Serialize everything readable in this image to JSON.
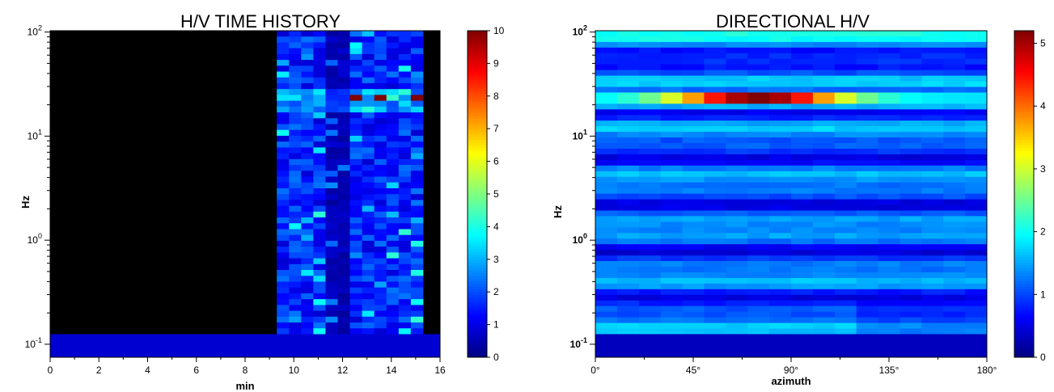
{
  "chart_data": [
    {
      "type": "heatmap",
      "title": "H/V TIME HISTORY",
      "xlabel": "min",
      "ylabel": "Hz",
      "xlim": [
        0,
        16
      ],
      "ylim": [
        0.1,
        100
      ],
      "yscale": "log",
      "x_ticks": [
        "0",
        "2",
        "4",
        "6",
        "8",
        "10",
        "12",
        "14",
        "16"
      ],
      "y_ticks": [
        {
          "base": "10",
          "exp": "-1"
        },
        {
          "base": "10",
          "exp": "0"
        },
        {
          "base": "10",
          "exp": "1"
        },
        {
          "base": "10",
          "exp": "2"
        }
      ],
      "colorbar": {
        "min": 0,
        "max": 10,
        "ticks": [
          "0",
          "1",
          "2",
          "3",
          "4",
          "5",
          "6",
          "7",
          "8",
          "9",
          "10"
        ]
      },
      "colormap": "jet",
      "no_data_color": "#000000",
      "data_start_min": 9.3,
      "data_end_min": 15,
      "peak_frequency_hz": 22,
      "peak_windows_min": [
        12.5,
        13.5,
        15.0
      ],
      "peak_value": 10
    },
    {
      "type": "heatmap",
      "title": "DIRECTIONAL H/V",
      "xlabel": "azimuth",
      "ylabel": "Hz",
      "xlim": [
        0,
        180
      ],
      "ylim": [
        0.1,
        100
      ],
      "yscale": "log",
      "x_ticks": [
        "0°",
        "45°",
        "90°",
        "135°",
        "180°"
      ],
      "y_ticks": [
        {
          "base": "10",
          "exp": "-1"
        },
        {
          "base": "10",
          "exp": "0"
        },
        {
          "base": "10",
          "exp": "1"
        },
        {
          "base": "10",
          "exp": "2"
        }
      ],
      "colorbar": {
        "min": 0,
        "max": 5.2,
        "ticks": [
          "0",
          "1",
          "2",
          "3",
          "4",
          "5"
        ]
      },
      "colormap": "jet",
      "peak_frequency_hz": 22,
      "peak_azimuth_deg": 75,
      "peak_value": 5.2
    }
  ]
}
